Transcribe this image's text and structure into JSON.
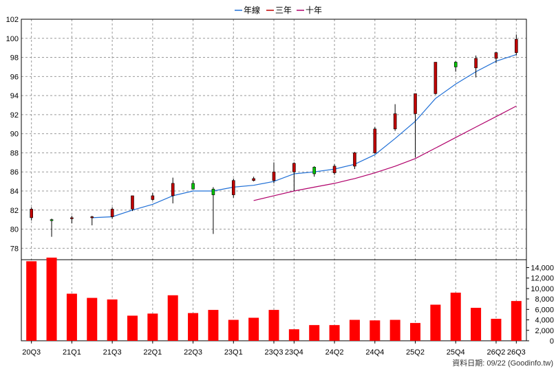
{
  "chart_data": {
    "type": "candlestick",
    "legend": [
      {
        "name": "年線",
        "color": "#1f6fd6"
      },
      {
        "name": "三年",
        "color": "#c00000"
      },
      {
        "name": "十年",
        "color": "#b0006a"
      }
    ],
    "price_axis": {
      "ylim": [
        76.8,
        102
      ],
      "ticks": [
        78,
        80,
        82,
        84,
        86,
        88,
        90,
        92,
        94,
        96,
        98,
        100,
        102
      ]
    },
    "volume_axis": {
      "ylim": [
        0,
        15500
      ],
      "ticks": [
        "0",
        "2,000",
        "4,000",
        "6,000",
        "8,000",
        "10,000",
        "12,000",
        "14,000"
      ]
    },
    "x_tick_labels": [
      {
        "i": 0,
        "label": "20Q3"
      },
      {
        "i": 2,
        "label": "21Q1"
      },
      {
        "i": 4,
        "label": "21Q3"
      },
      {
        "i": 6,
        "label": "22Q1"
      },
      {
        "i": 8,
        "label": "22Q3"
      },
      {
        "i": 10,
        "label": "23Q1"
      },
      {
        "i": 12,
        "label": "23Q3"
      },
      {
        "i": 13,
        "label": "23Q4"
      },
      {
        "i": 15,
        "label": "24Q2"
      },
      {
        "i": 17,
        "label": "24Q4"
      },
      {
        "i": 19,
        "label": "25Q2"
      },
      {
        "i": 21,
        "label": "25Q4"
      },
      {
        "i": 23,
        "label": "26Q2"
      },
      {
        "i": 24,
        "label": "26Q3"
      }
    ],
    "candles": [
      {
        "o": 81.2,
        "h": 82.3,
        "l": 80.9,
        "c": 82.1
      },
      {
        "o": 81.0,
        "h": 81.1,
        "l": 79.2,
        "c": 80.9
      },
      {
        "o": 81.1,
        "h": 81.4,
        "l": 80.6,
        "c": 81.2
      },
      {
        "o": 81.2,
        "h": 81.4,
        "l": 80.4,
        "c": 81.3
      },
      {
        "o": 81.3,
        "h": 82.3,
        "l": 81.1,
        "c": 82.1
      },
      {
        "o": 82.1,
        "h": 83.5,
        "l": 81.9,
        "c": 83.5
      },
      {
        "o": 83.1,
        "h": 83.8,
        "l": 83.0,
        "c": 83.5
      },
      {
        "o": 83.5,
        "h": 85.4,
        "l": 82.7,
        "c": 84.8
      },
      {
        "o": 84.8,
        "h": 85.1,
        "l": 84.2,
        "c": 84.2
      },
      {
        "o": 84.2,
        "h": 84.4,
        "l": 79.5,
        "c": 83.6
      },
      {
        "o": 83.6,
        "h": 85.3,
        "l": 83.3,
        "c": 85.1
      },
      {
        "o": 85.1,
        "h": 85.5,
        "l": 85.0,
        "c": 85.3
      },
      {
        "o": 85.1,
        "h": 87.0,
        "l": 84.8,
        "c": 86.0
      },
      {
        "o": 86.0,
        "h": 87.0,
        "l": 84.0,
        "c": 86.9
      },
      {
        "o": 86.5,
        "h": 86.6,
        "l": 85.5,
        "c": 85.8
      },
      {
        "o": 85.9,
        "h": 86.8,
        "l": 85.7,
        "c": 86.6
      },
      {
        "o": 86.6,
        "h": 88.1,
        "l": 86.3,
        "c": 88.0
      },
      {
        "o": 88.0,
        "h": 90.7,
        "l": 87.9,
        "c": 90.5
      },
      {
        "o": 90.5,
        "h": 93.1,
        "l": 90.3,
        "c": 92.1
      },
      {
        "o": 92.1,
        "h": 94.2,
        "l": 87.5,
        "c": 94.2
      },
      {
        "o": 94.2,
        "h": 97.5,
        "l": 94.1,
        "c": 97.5
      },
      {
        "o": 97.5,
        "h": 97.6,
        "l": 96.5,
        "c": 97.0
      },
      {
        "o": 96.9,
        "h": 98.2,
        "l": 95.9,
        "c": 97.9
      },
      {
        "o": 97.9,
        "h": 98.6,
        "l": 97.4,
        "c": 98.5
      },
      {
        "o": 98.5,
        "h": 100.4,
        "l": 98.2,
        "c": 99.9
      }
    ],
    "volume": [
      15200,
      15900,
      9000,
      8200,
      7900,
      4800,
      5200,
      8700,
      5300,
      5900,
      4000,
      4400,
      5900,
      2200,
      3000,
      3000,
      4000,
      3900,
      4000,
      3400,
      6900,
      9200,
      6300,
      4200,
      7600
    ],
    "ma_year": [
      {
        "x": 3,
        "y": 81.2
      },
      {
        "x": 4,
        "y": 81.3
      },
      {
        "x": 5,
        "y": 82.0
      },
      {
        "x": 6,
        "y": 82.6
      },
      {
        "x": 7,
        "y": 83.5
      },
      {
        "x": 8,
        "y": 84.0
      },
      {
        "x": 9,
        "y": 84.0
      },
      {
        "x": 10,
        "y": 84.4
      },
      {
        "x": 11,
        "y": 84.6
      },
      {
        "x": 12,
        "y": 85.0
      },
      {
        "x": 13,
        "y": 85.8
      },
      {
        "x": 14,
        "y": 86.0
      },
      {
        "x": 15,
        "y": 86.3
      },
      {
        "x": 16,
        "y": 86.8
      },
      {
        "x": 17,
        "y": 87.8
      },
      {
        "x": 18,
        "y": 89.5
      },
      {
        "x": 19,
        "y": 91.3
      },
      {
        "x": 20,
        "y": 93.7
      },
      {
        "x": 21,
        "y": 95.2
      },
      {
        "x": 22,
        "y": 96.5
      },
      {
        "x": 23,
        "y": 97.6
      },
      {
        "x": 24,
        "y": 98.3
      }
    ],
    "ma_three_year": [
      {
        "x": 11,
        "y": 83.0
      },
      {
        "x": 12,
        "y": 83.5
      },
      {
        "x": 13,
        "y": 84.0
      },
      {
        "x": 14,
        "y": 84.4
      },
      {
        "x": 15,
        "y": 84.8
      },
      {
        "x": 16,
        "y": 85.3
      },
      {
        "x": 17,
        "y": 85.9
      },
      {
        "x": 18,
        "y": 86.6
      },
      {
        "x": 19,
        "y": 87.4
      },
      {
        "x": 20,
        "y": 88.5
      },
      {
        "x": 21,
        "y": 89.6
      },
      {
        "x": 22,
        "y": 90.7
      },
      {
        "x": 23,
        "y": 91.8
      },
      {
        "x": 24,
        "y": 92.9
      }
    ],
    "up_color": "#c00000",
    "down_color": "#00c000",
    "volume_color": "#ff0000"
  },
  "source_label": "資料日期: 09/22  (Goodinfo.tw)"
}
